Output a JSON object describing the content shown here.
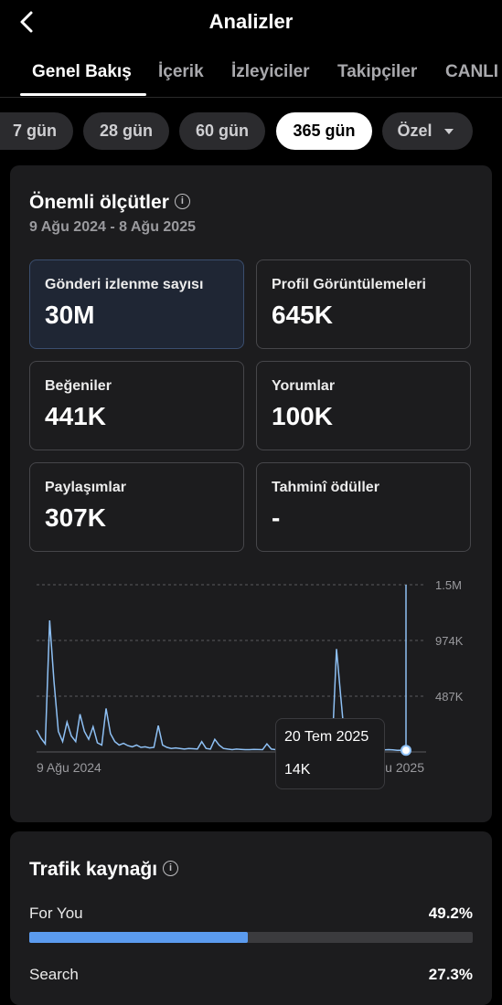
{
  "header": {
    "title": "Analizler"
  },
  "tabs": [
    {
      "label": "Genel Bakış"
    },
    {
      "label": "İçerik"
    },
    {
      "label": "İzleyiciler"
    },
    {
      "label": "Takipçiler"
    },
    {
      "label": "CANLI"
    }
  ],
  "ranges": [
    "7 gün",
    "28 gün",
    "60 gün",
    "365 gün",
    "Özel"
  ],
  "key_metrics": {
    "title": "Önemli ölçütler",
    "date_range": "9 Ağu 2024 - 8 Ağu 2025",
    "items": [
      {
        "label": "Gönderi izlenme sayısı",
        "value": "30M",
        "selected": true
      },
      {
        "label": "Profil Görüntülemeleri",
        "value": "645K"
      },
      {
        "label": "Beğeniler",
        "value": "441K"
      },
      {
        "label": "Yorumlar",
        "value": "100K"
      },
      {
        "label": "Paylaşımlar",
        "value": "307K"
      },
      {
        "label": "Tahminî ödüller",
        "value": "-"
      }
    ]
  },
  "chart_data": {
    "type": "line",
    "x_start_label": "9 Ağu 2024",
    "x_end_label": "8 Ağu 2025",
    "y_ticks": [
      "1.5M",
      "974K",
      "487K"
    ],
    "ylim": [
      0,
      1461000
    ],
    "series": [
      {
        "color": "#8ec0f4",
        "values": [
          190000,
          120000,
          70000,
          1150000,
          620000,
          180000,
          90000,
          260000,
          140000,
          90000,
          330000,
          180000,
          110000,
          220000,
          80000,
          60000,
          380000,
          160000,
          90000,
          60000,
          75000,
          55000,
          45000,
          60000,
          40000,
          45000,
          35000,
          40000,
          230000,
          60000,
          40000,
          30000,
          35000,
          30000,
          25000,
          30000,
          28000,
          25000,
          90000,
          30000,
          25000,
          110000,
          60000,
          30000,
          25000,
          20000,
          25000,
          22000,
          20000,
          20000,
          22000,
          21000,
          20000,
          70000,
          25000,
          20000,
          18000,
          20000,
          22000,
          20000,
          19000,
          18000,
          20000,
          19000,
          18000,
          17000,
          18000,
          19000,
          25000,
          900000,
          480000,
          60000,
          35000,
          28000,
          25000,
          40000,
          30000,
          22000,
          20000,
          19000,
          18000,
          20000,
          18000,
          14000,
          15000,
          14000
        ]
      }
    ],
    "tooltip": {
      "date": "20 Tem 2025",
      "value": "14K"
    }
  },
  "traffic": {
    "title": "Trafik kaynağı",
    "items": [
      {
        "label": "For You",
        "percent": "49.2%",
        "fraction": 0.492
      },
      {
        "label": "Search",
        "percent": "27.3%",
        "fraction": 0.273
      }
    ]
  },
  "colors": {
    "accent": "#5b9bef",
    "background": "#000000",
    "card": "#1c1c1e"
  }
}
